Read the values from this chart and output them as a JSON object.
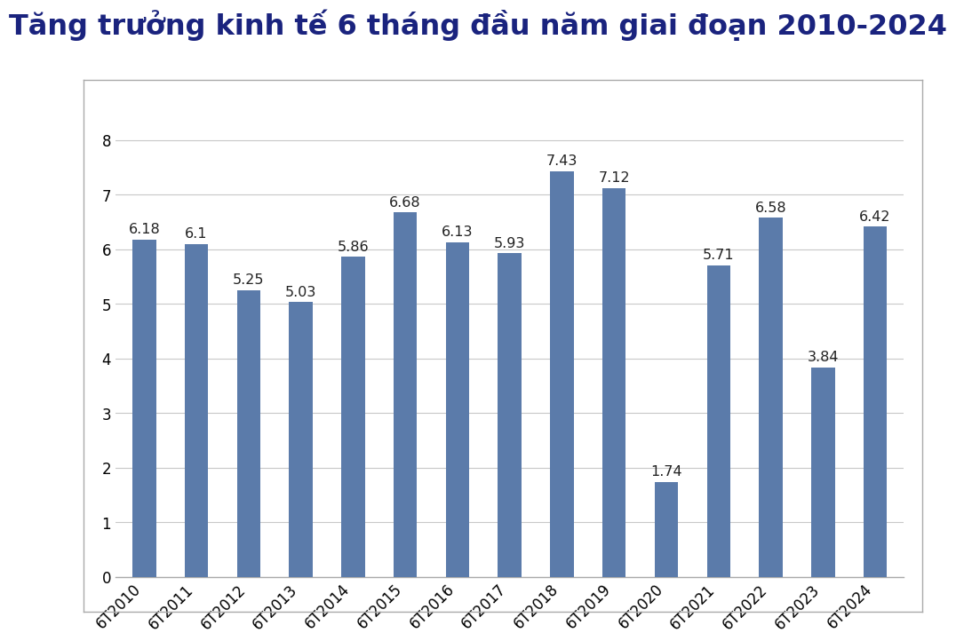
{
  "title": "Tăng trưởng kinh tế 6 tháng đầu năm giai đoạn 2010-2024",
  "categories": [
    "6T2010",
    "6T2011",
    "6T2012",
    "6T2013",
    "6T2014",
    "6T2015",
    "6T2016",
    "6T2017",
    "6T2018",
    "6T2019",
    "6T2020",
    "6T2021",
    "6T2022",
    "6T2023",
    "6T2024"
  ],
  "values": [
    6.18,
    6.1,
    5.25,
    5.03,
    5.86,
    6.68,
    6.13,
    5.93,
    7.43,
    7.12,
    1.74,
    5.71,
    6.58,
    3.84,
    6.42
  ],
  "bar_color": "#5b7baa",
  "ylim": [
    0,
    8.6
  ],
  "yticks": [
    0,
    1,
    2,
    3,
    4,
    5,
    6,
    7,
    8
  ],
  "title_color": "#1a237e",
  "title_fontsize": 23,
  "label_fontsize": 11.5,
  "tick_fontsize": 12,
  "background_color": "#ffffff",
  "grid_color": "#c8c8c8",
  "bar_width": 0.45
}
